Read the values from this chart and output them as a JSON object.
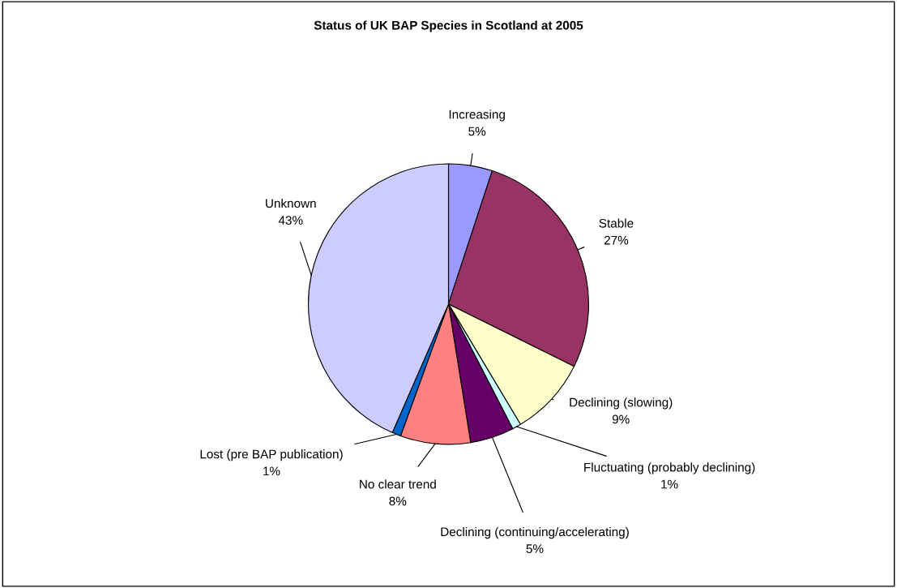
{
  "chart_data": {
    "type": "pie",
    "title": "Status of UK BAP Species in Scotland at 2005",
    "categories": [
      "Increasing",
      "Stable",
      "Declining (slowing)",
      "Fluctuating (probably declining)",
      "Declining (continuing/accelerating)",
      "No clear trend",
      "Lost (pre BAP publication)",
      "Unknown"
    ],
    "values": [
      5,
      27,
      9,
      1,
      5,
      8,
      1,
      43
    ],
    "colors": [
      "#9999ff",
      "#993366",
      "#ffffcc",
      "#ccffff",
      "#660066",
      "#ff8080",
      "#0066cc",
      "#ccccff"
    ],
    "value_labels": [
      "5%",
      "27%",
      "9%",
      "1%",
      "5%",
      "8%",
      "1%",
      "43%"
    ]
  }
}
